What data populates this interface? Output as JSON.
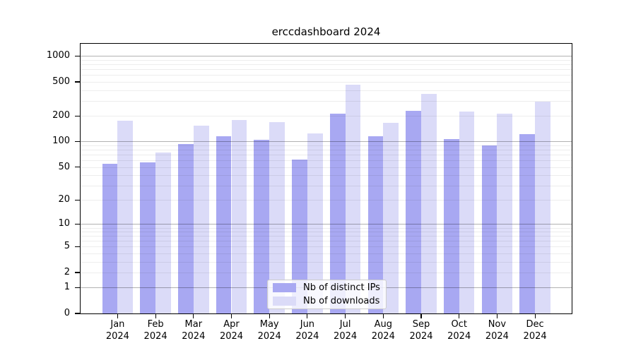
{
  "chart_data": {
    "type": "bar",
    "title": "erccdashboard 2024",
    "months": [
      "Jan",
      "Feb",
      "Mar",
      "Apr",
      "May",
      "Jun",
      "Jul",
      "Aug",
      "Sep",
      "Oct",
      "Nov",
      "Dec"
    ],
    "year_label": "2024",
    "series": [
      {
        "name": "Nb of distinct IPs",
        "color": "#a8a8f2",
        "values": [
          55,
          57,
          94,
          116,
          105,
          61,
          214,
          116,
          231,
          107,
          90,
          122
        ]
      },
      {
        "name": "Nb of downloads",
        "color": "#dbdbf8",
        "values": [
          176,
          74,
          153,
          179,
          170,
          125,
          464,
          166,
          360,
          225,
          214,
          294
        ]
      }
    ],
    "y_ticks": [
      0,
      1,
      2,
      5,
      10,
      20,
      50,
      100,
      200,
      500,
      1000
    ],
    "y_scale": "log10(value+1)",
    "ylim": [
      0,
      1400
    ],
    "grid": "horizontal major at powers of 10, minor at 2-9 multiples, drawn over bars",
    "legend_position": "inside bottom-center"
  }
}
